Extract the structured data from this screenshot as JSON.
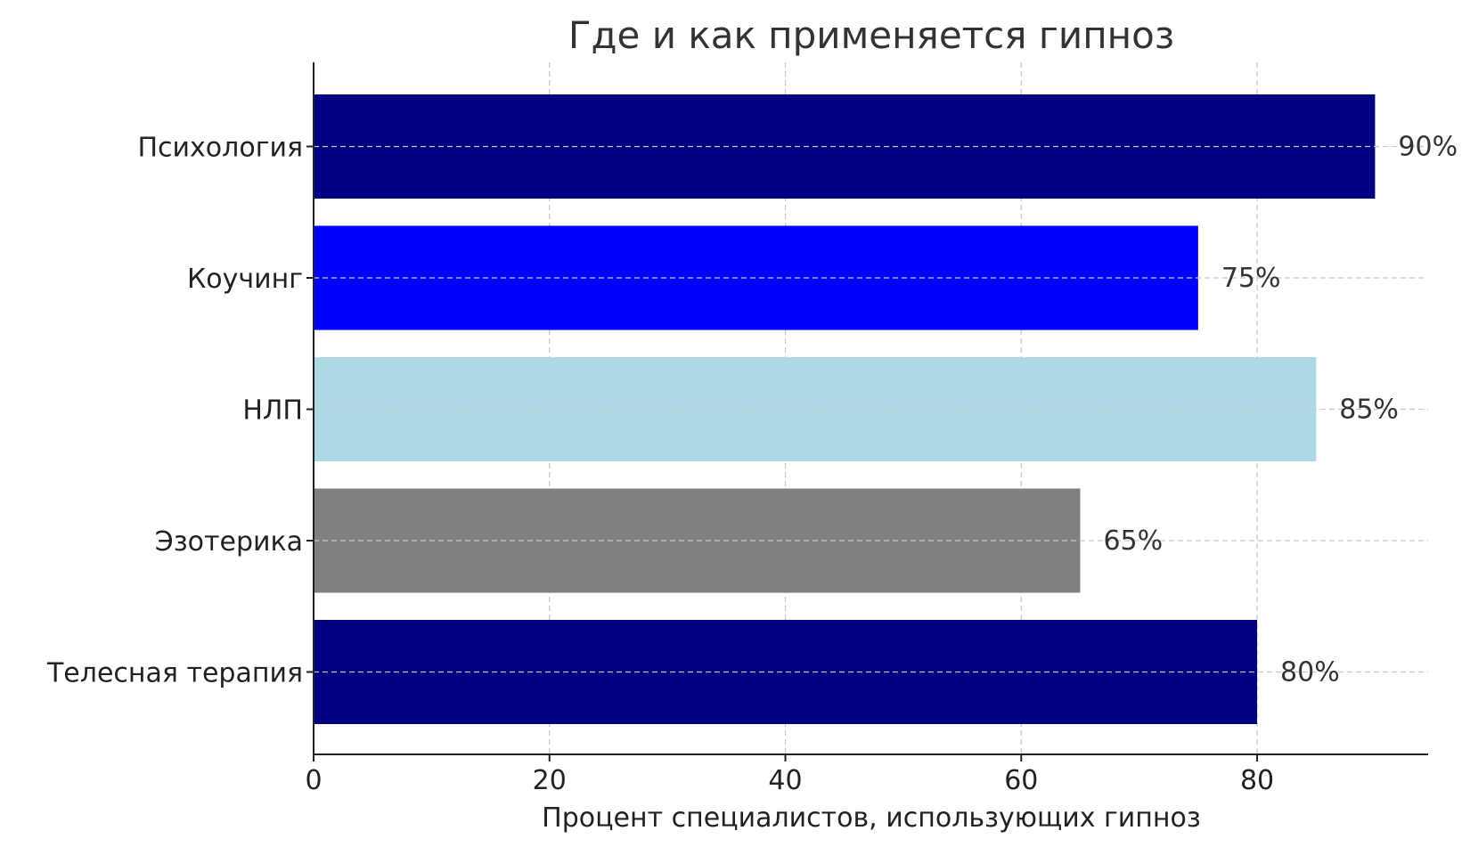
{
  "chart_data": {
    "type": "bar",
    "orientation": "horizontal",
    "title": "Где и как применяется гипноз",
    "xlabel": "Процент специалистов, использующих гипноз",
    "ylabel": "",
    "categories": [
      "Психология",
      "Коучинг",
      "НЛП",
      "Эзотерика",
      "Телесная терапия"
    ],
    "values": [
      90,
      75,
      85,
      65,
      80
    ],
    "value_labels": [
      "90%",
      "75%",
      "85%",
      "65%",
      "80%"
    ],
    "colors": [
      "#000080",
      "#0000ff",
      "#add8e6",
      "#808080",
      "#000080"
    ],
    "xticks": [
      0,
      20,
      40,
      60,
      80
    ],
    "xtick_labels": [
      "0",
      "20",
      "40",
      "60",
      "80"
    ],
    "xlim": [
      0,
      94.5
    ],
    "grid": true,
    "legend": "none"
  }
}
